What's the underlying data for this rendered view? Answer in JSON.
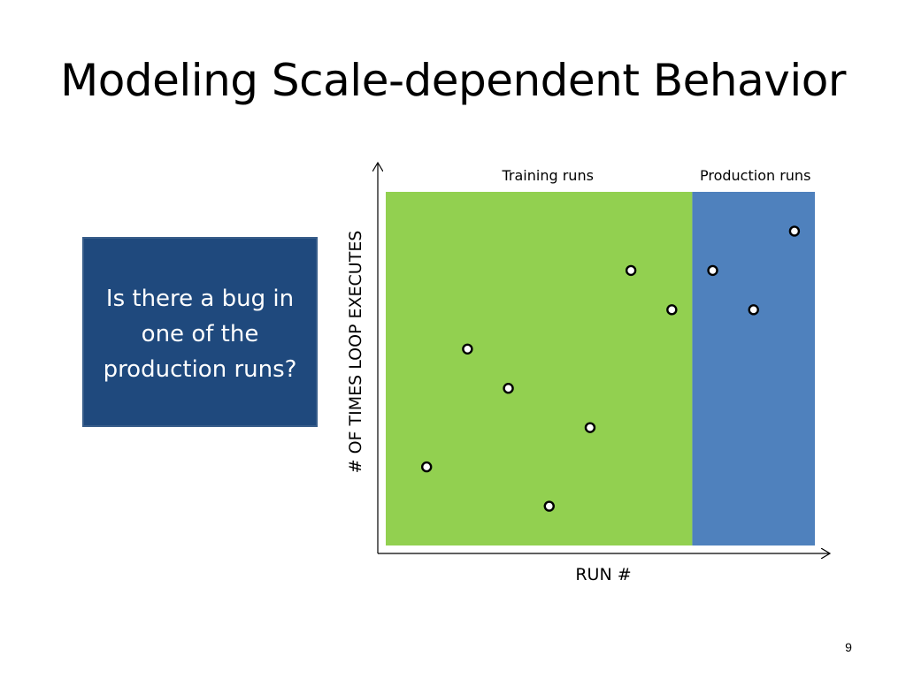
{
  "slide": {
    "title": "Modeling Scale-dependent Behavior",
    "callout_text": "Is there a bug in one of the production runs?",
    "page_number": "9"
  },
  "chart_data": {
    "type": "scatter",
    "xlabel": "RUN #",
    "ylabel": "# OF TIMES LOOP EXECUTES",
    "regions": [
      {
        "label": "Training runs",
        "color": "#92d050"
      },
      {
        "label": "Production runs",
        "color": "#4f81bd"
      }
    ],
    "training_points": [
      {
        "x": 1,
        "y": 2
      },
      {
        "x": 2,
        "y": 5
      },
      {
        "x": 3,
        "y": 4
      },
      {
        "x": 4,
        "y": 1
      },
      {
        "x": 5,
        "y": 3
      },
      {
        "x": 6,
        "y": 7
      },
      {
        "x": 7,
        "y": 6
      }
    ],
    "production_points": [
      {
        "x": 8,
        "y": 7
      },
      {
        "x": 9,
        "y": 6
      },
      {
        "x": 10,
        "y": 8
      }
    ],
    "xlim": [
      0,
      10.5
    ],
    "ylim": [
      0,
      9
    ],
    "grid": false,
    "ticks": false
  }
}
